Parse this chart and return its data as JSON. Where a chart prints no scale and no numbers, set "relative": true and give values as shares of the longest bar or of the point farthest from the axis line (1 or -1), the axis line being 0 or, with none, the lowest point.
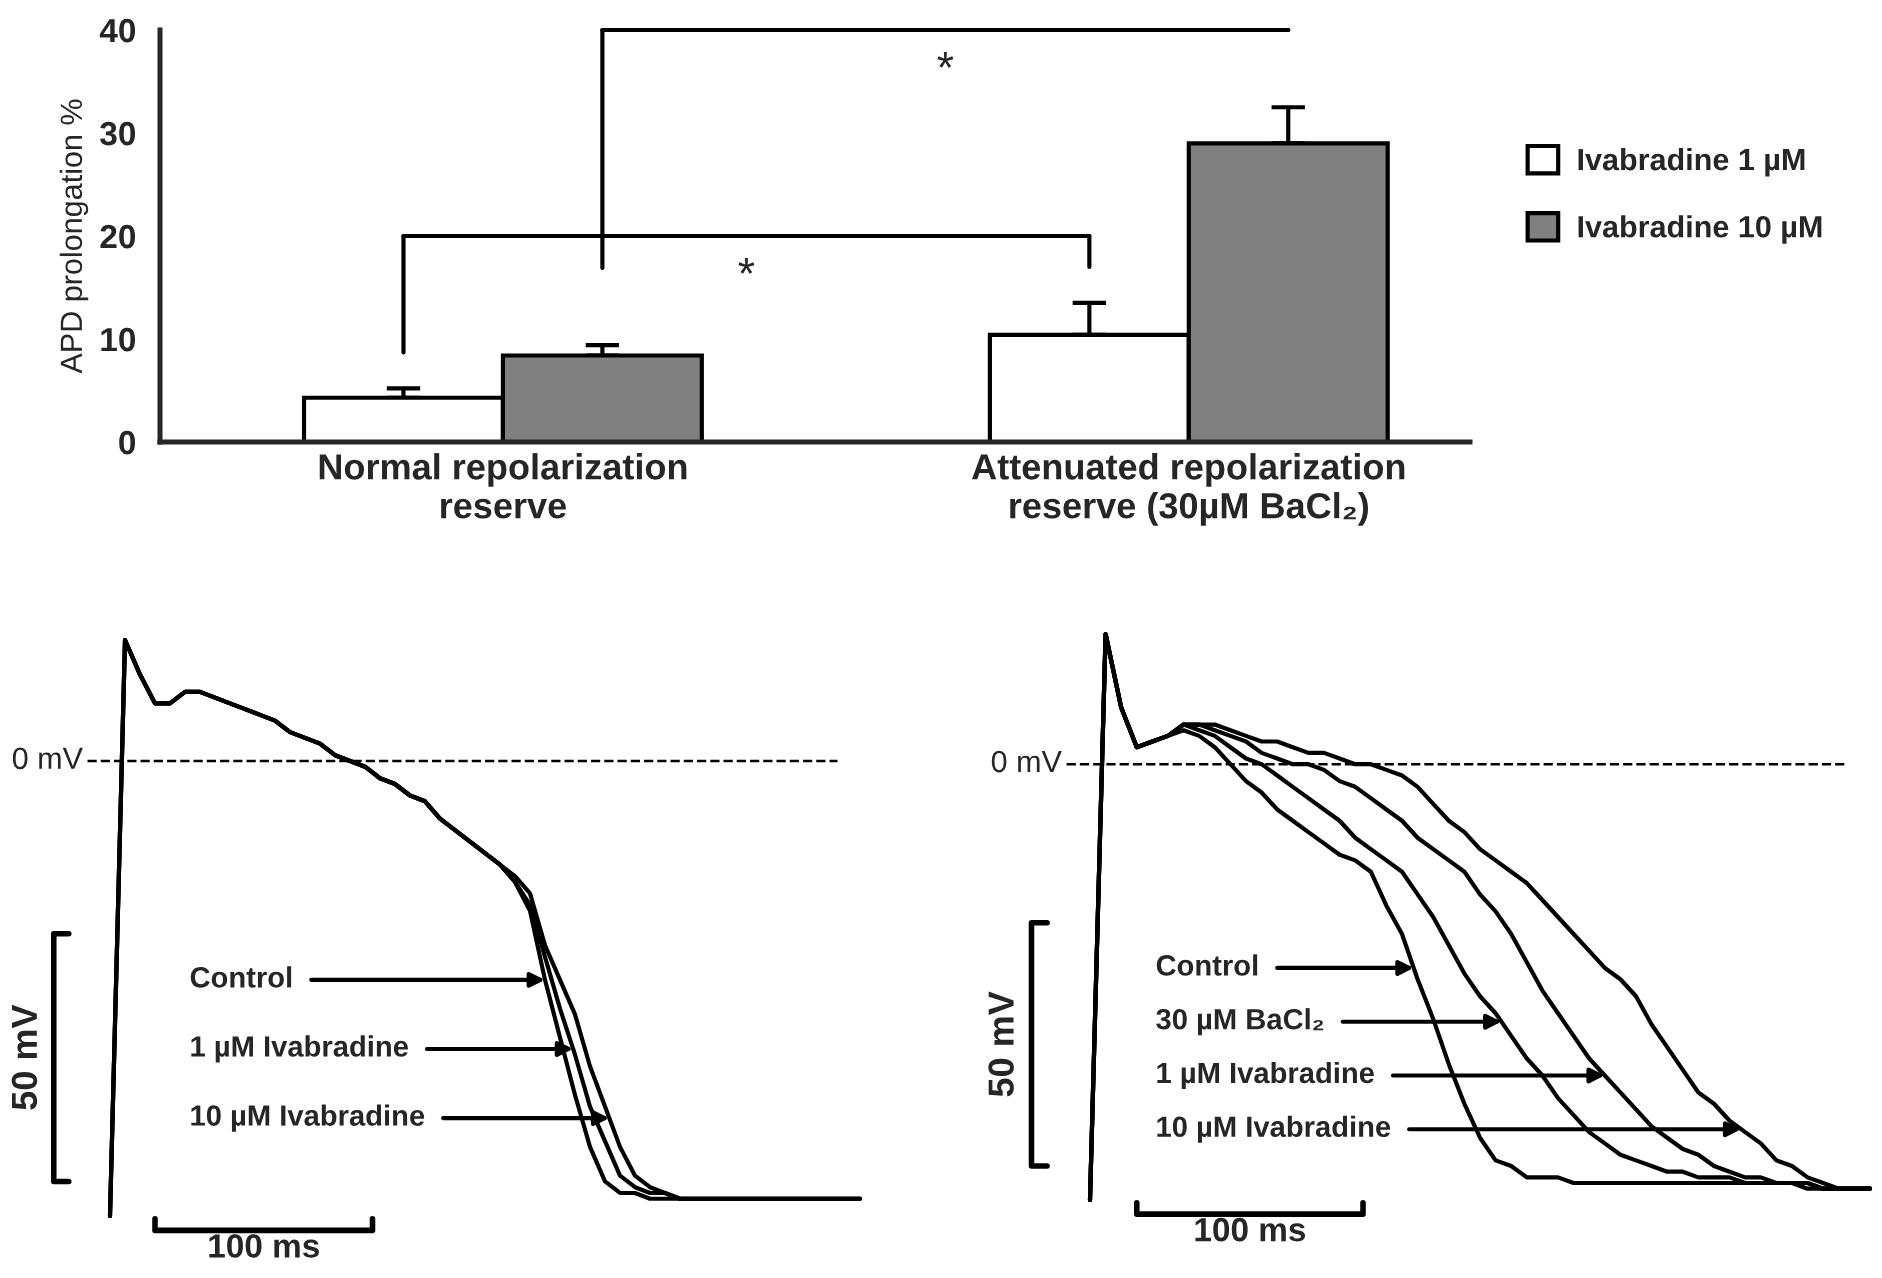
{
  "chart_data": [
    {
      "type": "bar",
      "ylabel": "APD prolongation %",
      "categories": [
        "Normal repolarization\nreserve",
        "Attenuated repolarization\nreserve (30µM BaCl₂)"
      ],
      "ylim": [
        0,
        40
      ],
      "yticks": [
        0,
        10,
        20,
        30,
        40
      ],
      "legend": "right",
      "series": [
        {
          "name": "Ivabradine 1 µM",
          "color": "#ffffff",
          "values": [
            4.3,
            10.4
          ],
          "errors": [
            [
              4.3,
              5.2
            ],
            [
              10.4,
              13.5
            ]
          ]
        },
        {
          "name": "Ivabradine 10 µM",
          "color": "#808080",
          "values": [
            8.4,
            29.0
          ],
          "errors": [
            [
              8.4,
              9.4
            ],
            [
              29.0,
              32.5
            ]
          ]
        }
      ],
      "annotations": [
        "*",
        "*"
      ]
    },
    {
      "type": "line",
      "relative": true,
      "categories": [
        null,
        null,
        null,
        null,
        null,
        null,
        null,
        null,
        null,
        null,
        null,
        null,
        null,
        null,
        null,
        null,
        null,
        null,
        null,
        null,
        null,
        null,
        null,
        null,
        null,
        null,
        null,
        null,
        null,
        null,
        null,
        null,
        null,
        null,
        null,
        null,
        null,
        null,
        null,
        null,
        null,
        null,
        null,
        null,
        null,
        null,
        null,
        null,
        null,
        null,
        null
      ],
      "series": [
        {
          "name": "Control",
          "color": "#000000",
          "values": [
            0,
            1,
            0.94,
            0.89,
            0.89,
            0.91,
            0.91,
            0.9,
            0.89,
            0.88,
            0.87,
            0.86,
            0.84,
            0.83,
            0.82,
            0.8,
            0.79,
            0.78,
            0.76,
            0.75,
            0.73,
            0.72,
            0.69,
            0.67,
            0.65,
            0.63,
            0.61,
            0.58,
            0.53,
            0.41,
            0.31,
            0.21,
            0.12,
            0.06,
            0.04,
            0.04,
            0.03,
            0.03,
            0.03,
            0.03,
            0.03,
            0.03,
            0.03,
            0.03,
            0.03,
            0.03,
            0.03,
            0.03,
            0.03,
            0.03,
            0.03
          ]
        },
        {
          "name": "1 µM Ivabradine",
          "color": "#000000",
          "values": [
            0,
            1,
            0.94,
            0.89,
            0.89,
            0.91,
            0.91,
            0.9,
            0.89,
            0.88,
            0.87,
            0.86,
            0.84,
            0.83,
            0.82,
            0.8,
            0.79,
            0.78,
            0.76,
            0.75,
            0.73,
            0.72,
            0.69,
            0.67,
            0.65,
            0.63,
            0.61,
            0.58,
            0.54,
            0.45,
            0.36,
            0.28,
            0.19,
            0.13,
            0.07,
            0.05,
            0.04,
            0.04,
            0.03,
            0.03,
            0.03,
            0.03,
            0.03,
            0.03,
            0.03,
            0.03,
            0.03,
            0.03,
            0.03,
            0.03,
            0.03
          ]
        },
        {
          "name": "10 µM Ivabradine",
          "color": "#000000",
          "values": [
            0,
            1,
            0.94,
            0.89,
            0.89,
            0.91,
            0.91,
            0.9,
            0.89,
            0.88,
            0.87,
            0.86,
            0.84,
            0.83,
            0.82,
            0.8,
            0.79,
            0.78,
            0.76,
            0.75,
            0.73,
            0.72,
            0.69,
            0.67,
            0.65,
            0.63,
            0.61,
            0.59,
            0.56,
            0.47,
            0.41,
            0.35,
            0.26,
            0.19,
            0.12,
            0.07,
            0.05,
            0.04,
            0.03,
            0.03,
            0.03,
            0.03,
            0.03,
            0.03,
            0.03,
            0.03,
            0.03,
            0.03,
            0.03,
            0.03,
            0.03
          ]
        }
      ],
      "ref_lines": [
        {
          "axis": "y",
          "value": 0.79,
          "label": "0 mV",
          "line_style": "dashed",
          "color": "#000000"
        }
      ],
      "annotations": [
        "50 mV",
        "100 ms"
      ]
    },
    {
      "type": "line",
      "relative": true,
      "categories": [
        null,
        null,
        null,
        null,
        null,
        null,
        null,
        null,
        null,
        null,
        null,
        null,
        null,
        null,
        null,
        null,
        null,
        null,
        null,
        null,
        null,
        null,
        null,
        null,
        null,
        null,
        null,
        null,
        null,
        null,
        null,
        null,
        null,
        null,
        null,
        null,
        null,
        null,
        null,
        null,
        null,
        null,
        null,
        null,
        null,
        null,
        null,
        null,
        null,
        null,
        null
      ],
      "series": [
        {
          "name": "Control",
          "color": "#000000",
          "values": [
            0,
            1,
            0.87,
            0.8,
            0.81,
            0.82,
            0.83,
            0.82,
            0.8,
            0.77,
            0.74,
            0.72,
            0.69,
            0.67,
            0.65,
            0.63,
            0.61,
            0.6,
            0.58,
            0.52,
            0.47,
            0.39,
            0.32,
            0.24,
            0.17,
            0.11,
            0.07,
            0.06,
            0.04,
            0.04,
            0.04,
            0.03,
            0.03,
            0.03,
            0.03,
            0.03,
            0.03,
            0.03,
            0.03,
            0.03,
            0.03,
            0.03,
            0.03,
            0.03,
            0.03,
            0.03,
            0.02,
            0.02,
            0.02,
            0.02,
            0.02
          ]
        },
        {
          "name": "30 µM BaCl₂",
          "color": "#000000",
          "values": [
            0,
            1,
            0.87,
            0.8,
            0.81,
            0.82,
            0.84,
            0.83,
            0.82,
            0.8,
            0.78,
            0.77,
            0.75,
            0.73,
            0.71,
            0.69,
            0.67,
            0.64,
            0.62,
            0.6,
            0.58,
            0.54,
            0.5,
            0.45,
            0.4,
            0.36,
            0.33,
            0.29,
            0.25,
            0.22,
            0.18,
            0.15,
            0.12,
            0.1,
            0.08,
            0.07,
            0.06,
            0.05,
            0.05,
            0.04,
            0.04,
            0.04,
            0.03,
            0.03,
            0.03,
            0.03,
            0.03,
            0.02,
            0.02,
            0.02,
            0.02
          ]
        },
        {
          "name": "1 µM Ivabradine",
          "color": "#000000",
          "values": [
            0,
            1,
            0.87,
            0.8,
            0.81,
            0.82,
            0.84,
            0.84,
            0.83,
            0.82,
            0.81,
            0.79,
            0.78,
            0.77,
            0.77,
            0.76,
            0.74,
            0.73,
            0.71,
            0.69,
            0.67,
            0.64,
            0.62,
            0.6,
            0.58,
            0.54,
            0.51,
            0.47,
            0.42,
            0.37,
            0.33,
            0.29,
            0.25,
            0.22,
            0.19,
            0.16,
            0.13,
            0.11,
            0.09,
            0.08,
            0.06,
            0.05,
            0.04,
            0.04,
            0.03,
            0.03,
            0.03,
            0.02,
            0.02,
            0.02,
            0.02
          ]
        },
        {
          "name": "10 µM Ivabradine",
          "color": "#000000",
          "values": [
            0,
            1,
            0.87,
            0.8,
            0.81,
            0.82,
            0.84,
            0.84,
            0.84,
            0.83,
            0.82,
            0.81,
            0.81,
            0.8,
            0.79,
            0.79,
            0.78,
            0.77,
            0.77,
            0.76,
            0.75,
            0.73,
            0.7,
            0.67,
            0.65,
            0.62,
            0.6,
            0.58,
            0.56,
            0.53,
            0.5,
            0.47,
            0.44,
            0.41,
            0.39,
            0.36,
            0.31,
            0.27,
            0.23,
            0.19,
            0.17,
            0.14,
            0.12,
            0.1,
            0.07,
            0.06,
            0.04,
            0.03,
            0.02,
            0.02,
            0.02
          ]
        }
      ],
      "ref_lines": [
        {
          "axis": "y",
          "value": 0.77,
          "label": "0 mV",
          "line_style": "dashed",
          "color": "#000000"
        }
      ],
      "annotations": [
        "50 mV",
        "100 ms"
      ]
    }
  ]
}
